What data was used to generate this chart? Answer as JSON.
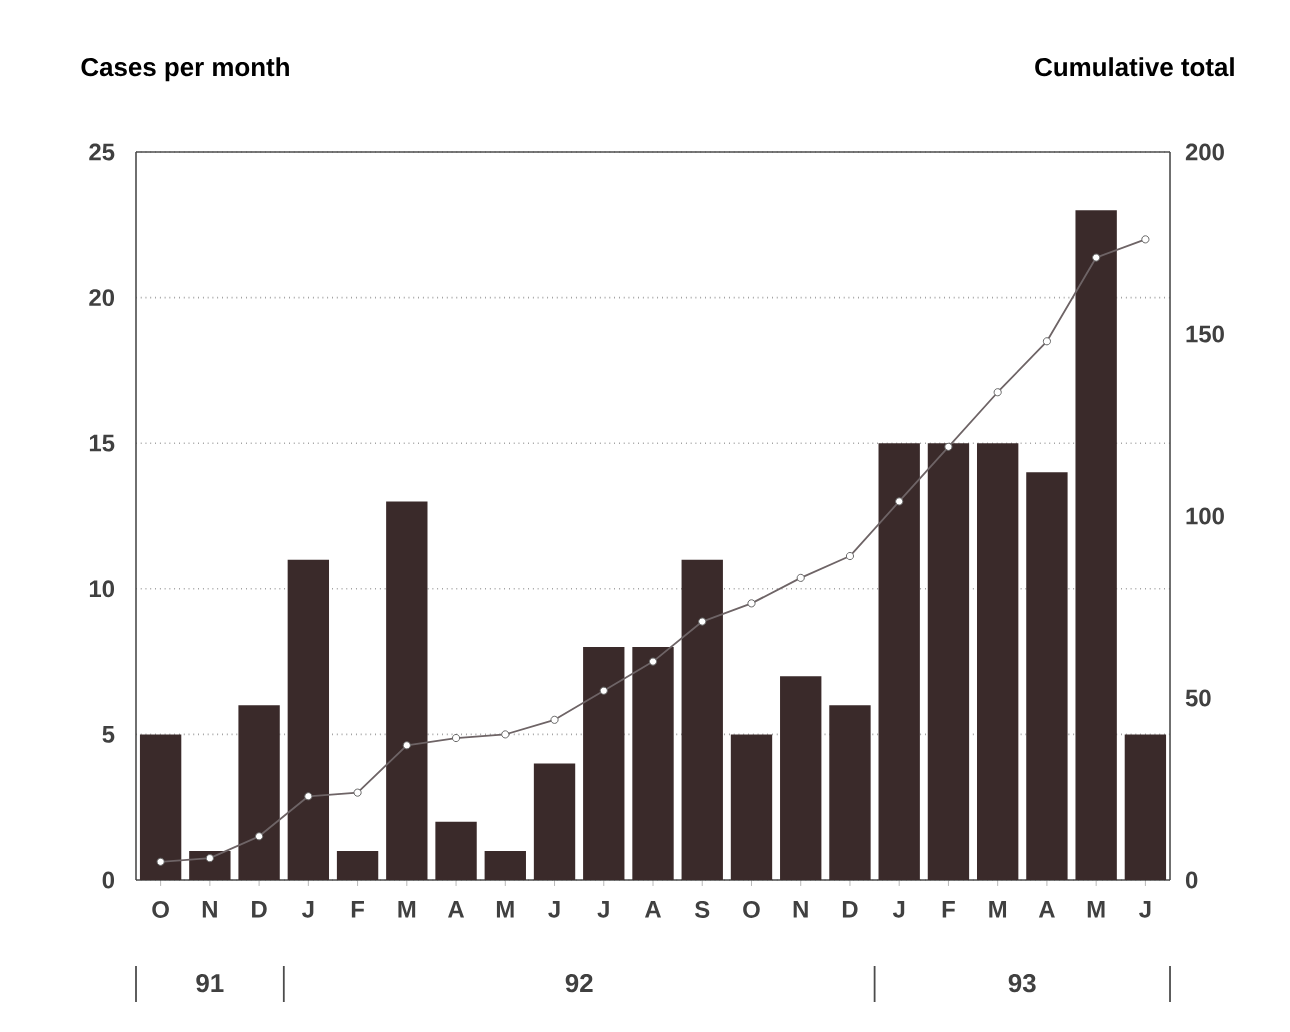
{
  "chart_data": {
    "type": "bar",
    "ylabel": "Cases per month",
    "y2label": "Cumulative total",
    "categories": [
      "O",
      "N",
      "D",
      "J",
      "F",
      "M",
      "A",
      "M",
      "J",
      "J",
      "A",
      "S",
      "O",
      "N",
      "D",
      "J",
      "F",
      "M",
      "A",
      "M",
      "J"
    ],
    "series": [
      {
        "color": "#3a2a2a",
        "values": [
          5,
          1,
          6,
          11,
          1,
          13,
          2,
          1,
          4,
          8,
          8,
          11,
          5,
          7,
          6,
          15,
          15,
          15,
          14,
          23,
          5
        ]
      },
      {
        "type": "line",
        "axis": "y2",
        "color": "#6e6466",
        "marker": "circle",
        "values": [
          5,
          6,
          12,
          23,
          24,
          37,
          39,
          40,
          44,
          52,
          60,
          71,
          76,
          83,
          89,
          104,
          119,
          134,
          148,
          171,
          176
        ]
      }
    ],
    "ylim": [
      0,
      25
    ],
    "yticks": [
      0,
      5,
      10,
      15,
      20,
      25
    ],
    "y2lim": [
      0,
      200
    ],
    "y2ticks": [
      0,
      50,
      100,
      150,
      200
    ],
    "grid": "y",
    "legend": false,
    "annotations": [
      "91",
      "92",
      "93"
    ]
  }
}
